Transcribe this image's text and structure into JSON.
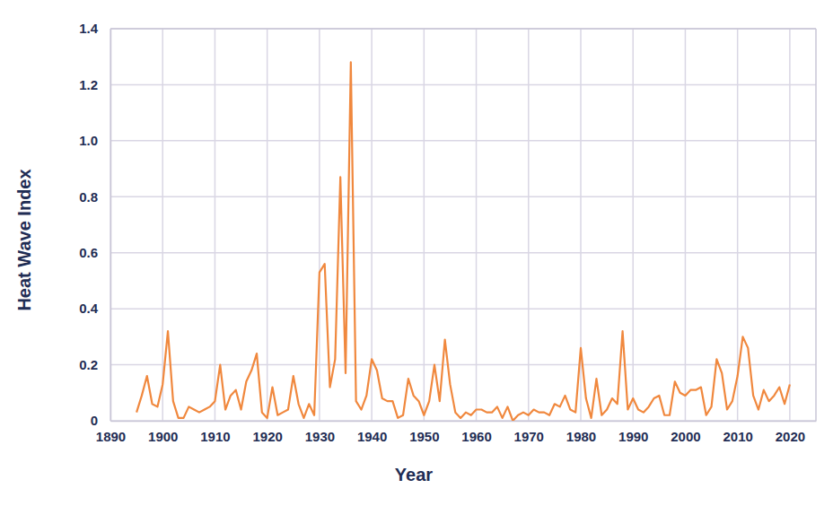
{
  "chart_data": {
    "type": "line",
    "x_label": "Year",
    "y_label": "Heat Wave Index",
    "x": [
      1895,
      1896,
      1897,
      1898,
      1899,
      1900,
      1901,
      1902,
      1903,
      1904,
      1905,
      1906,
      1907,
      1908,
      1909,
      1910,
      1911,
      1912,
      1913,
      1914,
      1915,
      1916,
      1917,
      1918,
      1919,
      1920,
      1921,
      1922,
      1923,
      1924,
      1925,
      1926,
      1927,
      1928,
      1929,
      1930,
      1931,
      1932,
      1933,
      1934,
      1935,
      1936,
      1937,
      1938,
      1939,
      1940,
      1941,
      1942,
      1943,
      1944,
      1945,
      1946,
      1947,
      1948,
      1949,
      1950,
      1951,
      1952,
      1953,
      1954,
      1955,
      1956,
      1957,
      1958,
      1959,
      1960,
      1961,
      1962,
      1963,
      1964,
      1965,
      1966,
      1967,
      1968,
      1969,
      1970,
      1971,
      1972,
      1973,
      1974,
      1975,
      1976,
      1977,
      1978,
      1979,
      1980,
      1981,
      1982,
      1983,
      1984,
      1985,
      1986,
      1987,
      1988,
      1989,
      1990,
      1991,
      1992,
      1993,
      1994,
      1995,
      1996,
      1997,
      1998,
      1999,
      2000,
      2001,
      2002,
      2003,
      2004,
      2005,
      2006,
      2007,
      2008,
      2009,
      2010,
      2011,
      2012,
      2013,
      2014,
      2015,
      2016,
      2017,
      2018,
      2019,
      2020
    ],
    "values": [
      0.03,
      0.09,
      0.16,
      0.06,
      0.05,
      0.13,
      0.32,
      0.07,
      0.01,
      0.01,
      0.05,
      0.04,
      0.03,
      0.04,
      0.05,
      0.07,
      0.2,
      0.04,
      0.09,
      0.11,
      0.04,
      0.14,
      0.18,
      0.24,
      0.03,
      0.01,
      0.12,
      0.02,
      0.03,
      0.04,
      0.16,
      0.06,
      0.01,
      0.06,
      0.02,
      0.53,
      0.56,
      0.12,
      0.22,
      0.87,
      0.17,
      1.28,
      0.07,
      0.04,
      0.09,
      0.22,
      0.18,
      0.08,
      0.07,
      0.07,
      0.01,
      0.02,
      0.15,
      0.09,
      0.07,
      0.02,
      0.07,
      0.2,
      0.07,
      0.29,
      0.13,
      0.03,
      0.01,
      0.03,
      0.02,
      0.04,
      0.04,
      0.03,
      0.03,
      0.05,
      0.01,
      0.05,
      0.0,
      0.02,
      0.03,
      0.02,
      0.04,
      0.03,
      0.03,
      0.02,
      0.06,
      0.05,
      0.09,
      0.04,
      0.03,
      0.26,
      0.08,
      0.01,
      0.15,
      0.02,
      0.04,
      0.08,
      0.06,
      0.32,
      0.04,
      0.08,
      0.04,
      0.03,
      0.05,
      0.08,
      0.09,
      0.02,
      0.02,
      0.14,
      0.1,
      0.09,
      0.11,
      0.11,
      0.12,
      0.02,
      0.05,
      0.22,
      0.17,
      0.04,
      0.07,
      0.16,
      0.3,
      0.26,
      0.09,
      0.04,
      0.11,
      0.07,
      0.09,
      0.12,
      0.06,
      0.13
    ],
    "color": "#f0883e",
    "xlim": [
      1890,
      2025
    ],
    "xticks": [
      1890,
      1900,
      1910,
      1920,
      1930,
      1940,
      1950,
      1960,
      1970,
      1980,
      1990,
      2000,
      2010,
      2020
    ],
    "ylim": [
      0,
      1.4
    ],
    "yticks": [
      0,
      0.2,
      0.4,
      0.6,
      0.8,
      {
        "value": 1,
        "label": "1.0"
      },
      1.2,
      1.4
    ],
    "grid": true
  }
}
